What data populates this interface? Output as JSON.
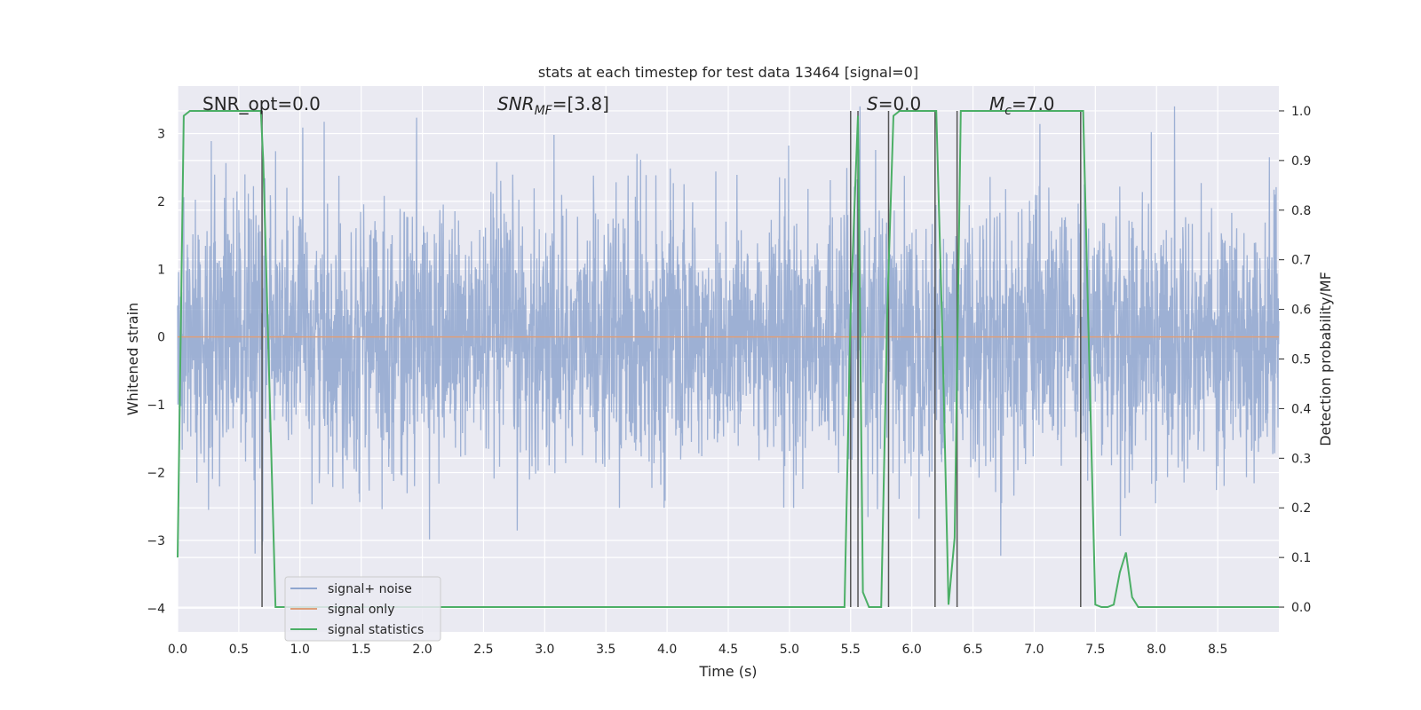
{
  "chart_data": {
    "type": "line",
    "title": "stats at each timestep for test data 13464 [signal=0]",
    "xlabel": "Time (s)",
    "ylabel_left": "Whitened strain",
    "ylabel_right": "Detection probability/MF",
    "xlim": [
      0,
      9.0
    ],
    "ylim_left": [
      -4.35,
      3.7
    ],
    "ylim_right": [
      -0.05,
      1.05
    ],
    "xticks": [
      "0.0",
      "0.5",
      "1.0",
      "1.5",
      "2.0",
      "2.5",
      "3.0",
      "3.5",
      "4.0",
      "4.5",
      "5.0",
      "5.5",
      "6.0",
      "6.5",
      "7.0",
      "7.5",
      "8.0",
      "8.5"
    ],
    "yticks_left": [
      "−4",
      "−3",
      "−2",
      "−1",
      "0",
      "1",
      "2",
      "3"
    ],
    "yticks_right": [
      "0.0",
      "0.1",
      "0.2",
      "0.3",
      "0.4",
      "0.5",
      "0.6",
      "0.7",
      "0.8",
      "0.9",
      "1.0"
    ],
    "grid": true,
    "legend_position": "lower-left",
    "annotations": {
      "snr_opt": "SNR_opt=0.0",
      "snr_mf": "SNR_MF=[3.8]",
      "s": "S=0.0",
      "mc": "M_c=7.0"
    },
    "series": [
      {
        "name": "signal+ noise",
        "color": "#8fa6cf",
        "description": "whitened strain noise around 0, amplitude roughly ±1.5 to ±3.4",
        "amplitude_envelope": [
          -3.4,
          3.4
        ]
      },
      {
        "name": "signal only",
        "color": "#dd9f7b",
        "x": [
          0,
          9.0
        ],
        "y": [
          0,
          0
        ]
      },
      {
        "name": "signal statistics",
        "color": "#4caf66",
        "axis": "right",
        "x": [
          0,
          0.05,
          0.1,
          0.2,
          0.3,
          0.4,
          0.5,
          0.6,
          0.68,
          0.7,
          0.8,
          0.9,
          1.0,
          2.0,
          3.0,
          4.0,
          5.0,
          5.45,
          5.5,
          5.56,
          5.6,
          5.65,
          5.7,
          5.75,
          5.8,
          5.85,
          5.9,
          6.0,
          6.1,
          6.2,
          6.25,
          6.3,
          6.35,
          6.4,
          6.45,
          6.5,
          7.0,
          7.35,
          7.4,
          7.45,
          7.5,
          7.55,
          7.6,
          7.65,
          7.7,
          7.75,
          7.8,
          7.85,
          7.9,
          8.0,
          9.0
        ],
        "y": [
          0.1,
          0.99,
          1.0,
          1.0,
          1.0,
          1.0,
          1.0,
          1.0,
          1.0,
          0.9,
          0.0,
          0.0,
          0.0,
          0.0,
          0.0,
          0.0,
          0.0,
          0.0,
          0.6,
          0.99,
          0.03,
          0.0,
          0.0,
          0.0,
          0.6,
          0.99,
          1.0,
          1.0,
          1.0,
          1.0,
          0.55,
          0.005,
          0.14,
          1.0,
          1.0,
          1.0,
          1.0,
          1.0,
          1.0,
          0.5,
          0.005,
          0.0,
          0.0,
          0.005,
          0.07,
          0.11,
          0.02,
          0.0,
          0.0,
          0.0,
          0.0
        ]
      }
    ],
    "vertical_lines_x": [
      0.69,
      5.5,
      5.56,
      5.81,
      6.19,
      6.37,
      7.38
    ]
  }
}
